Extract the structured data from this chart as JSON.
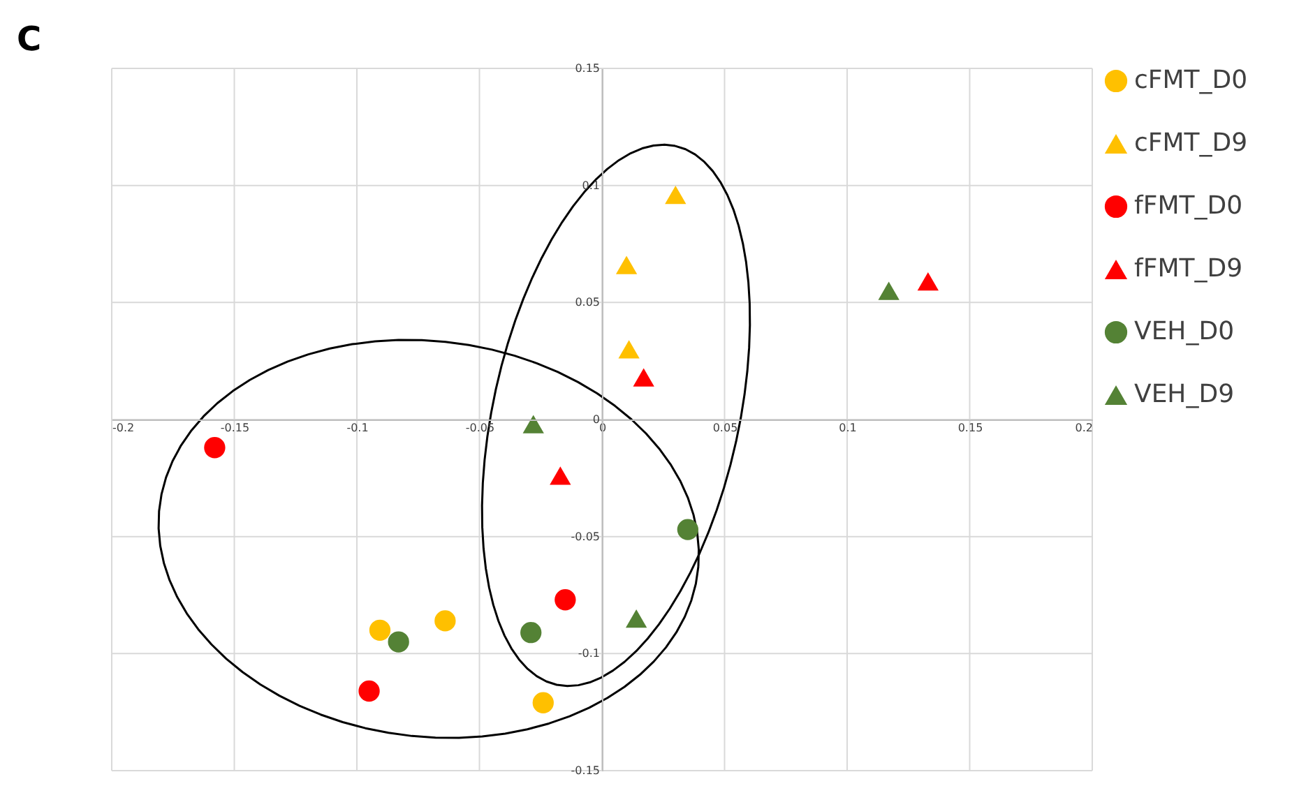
{
  "chart_data": {
    "type": "scatter",
    "title": "C",
    "xlim": [
      -0.2,
      0.2
    ],
    "xticks": [
      -0.2,
      -0.15,
      -0.1,
      -0.05,
      0,
      0.05,
      0.1,
      0.15,
      0.2
    ],
    "ylim": [
      -0.15,
      0.15
    ],
    "yticks": [
      -0.15,
      -0.1,
      -0.05,
      0,
      0.05,
      0.1,
      0.15
    ],
    "grid": true,
    "legend": "right",
    "series": [
      {
        "name": "cFMT_D0",
        "color": "#ffc000",
        "marker": "circle",
        "x": [
          -0.0906,
          -0.064,
          -0.024
        ],
        "values": [
          -0.09,
          -0.086,
          -0.121
        ]
      },
      {
        "name": "cFMT_D9",
        "color": "#ffc000",
        "marker": "triangle",
        "x": [
          0.03,
          0.01,
          0.011
        ],
        "values": [
          0.096,
          0.066,
          0.03
        ]
      },
      {
        "name": "fFMT_D0",
        "color": "#ff0000",
        "marker": "circle",
        "x": [
          -0.158,
          -0.015,
          -0.095
        ],
        "values": [
          -0.012,
          -0.077,
          -0.116
        ]
      },
      {
        "name": "fFMT_D9",
        "color": "#ff0000",
        "marker": "triangle",
        "x": [
          0.133,
          0.017,
          -0.017
        ],
        "values": [
          0.059,
          0.018,
          -0.024
        ]
      },
      {
        "name": "VEH_D0",
        "color": "#548235",
        "marker": "circle",
        "x": [
          0.035,
          -0.083,
          -0.029
        ],
        "values": [
          -0.047,
          -0.095,
          -0.091
        ]
      },
      {
        "name": "VEH_D9",
        "color": "#548235",
        "marker": "triangle",
        "x": [
          0.117,
          -0.028,
          0.014
        ],
        "values": [
          0.055,
          -0.002,
          -0.085
        ]
      }
    ]
  }
}
